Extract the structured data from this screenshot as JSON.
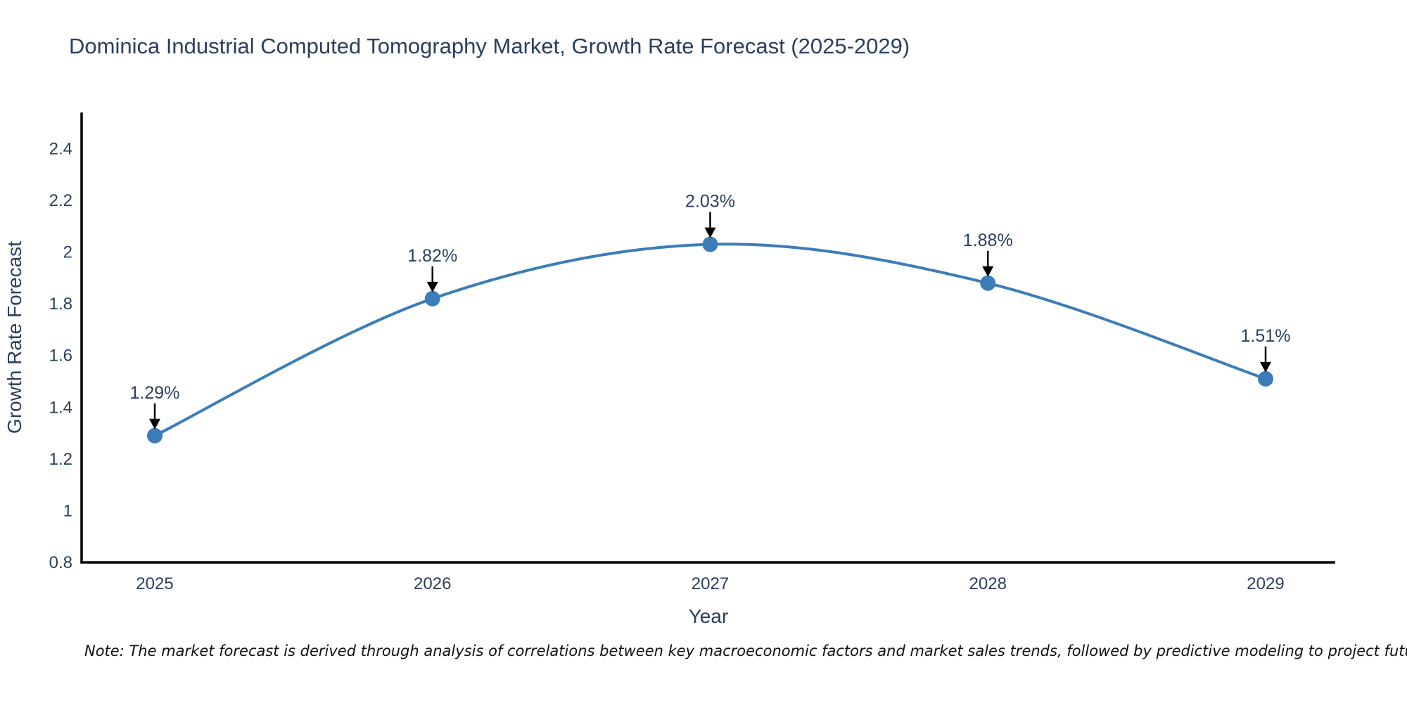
{
  "note": "Note: The market forecast is derived through analysis of correlations between key macroeconomic factors and market sales trends, followed by predictive modeling to project future sales",
  "chart_data": {
    "type": "line",
    "title": "Dominica Industrial Computed Tomography Market, Growth Rate Forecast (2025-2029)",
    "xlabel": "Year",
    "ylabel": "Growth Rate Forecast",
    "x": [
      2025,
      2026,
      2027,
      2028,
      2029
    ],
    "series": [
      {
        "name": "Growth Rate Forecast",
        "values": [
          1.29,
          1.82,
          2.03,
          1.88,
          1.51
        ]
      }
    ],
    "point_labels": [
      "1.29%",
      "1.82%",
      "2.03%",
      "1.88%",
      "1.51%"
    ],
    "ylim": [
      0.8,
      2.54
    ],
    "yticks": [
      0.8,
      1,
      1.2,
      1.4,
      1.6,
      1.8,
      2,
      2.2,
      2.4
    ],
    "grid": false,
    "legend_position": "none",
    "line_shape": "spline",
    "colors": {
      "line": "#3c7db8",
      "marker": "#3c7db8",
      "axis": "#000000",
      "text": "#2a3f5f",
      "arrow": "#000000",
      "background": "#ffffff"
    }
  }
}
